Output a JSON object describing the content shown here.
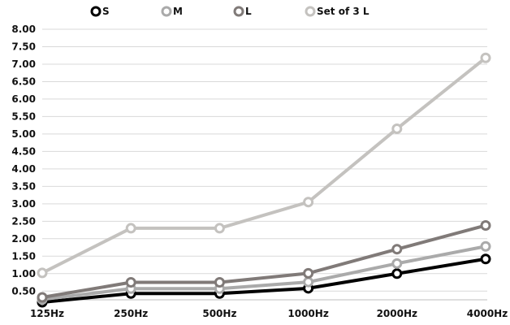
{
  "chart_data": {
    "type": "line",
    "title": "",
    "xlabel": "",
    "ylabel": "",
    "categories": [
      "125Hz",
      "250Hz",
      "500Hz",
      "1000Hz",
      "2000Hz",
      "4000Hz"
    ],
    "ylim": [
      0.25,
      8.0
    ],
    "yticks": [
      0.5,
      1.0,
      1.5,
      2.0,
      2.5,
      3.0,
      3.5,
      4.0,
      4.5,
      5.0,
      5.5,
      6.0,
      6.5,
      7.0,
      7.5,
      8.0
    ],
    "grid": true,
    "legend": "top",
    "series": [
      {
        "name": "S",
        "color": "#000000",
        "values": [
          0.18,
          0.43,
          0.43,
          0.58,
          1.0,
          1.42
        ]
      },
      {
        "name": "M",
        "color": "#aaaaaa",
        "values": [
          0.26,
          0.57,
          0.57,
          0.76,
          1.29,
          1.78
        ]
      },
      {
        "name": "L",
        "color": "#807a78",
        "values": [
          0.32,
          0.75,
          0.75,
          1.01,
          1.7,
          2.38
        ]
      },
      {
        "name": "Set of 3 L",
        "color": "#c4c2bf",
        "values": [
          1.02,
          2.3,
          2.3,
          3.05,
          5.15,
          7.18
        ]
      }
    ]
  }
}
